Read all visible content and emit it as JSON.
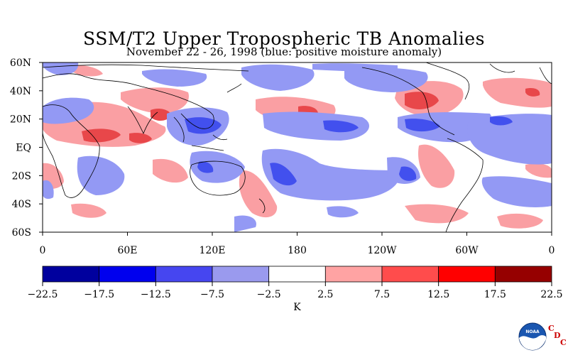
{
  "title": "SSM/T2 Upper Tropospheric TB Anomalies",
  "subtitle": "November 22 - 26, 1998 (blue: positive moisture anomaly)",
  "map": {
    "lat_labels": [
      "60N",
      "40N",
      "20N",
      "EQ",
      "20S",
      "40S",
      "60S"
    ],
    "lon_labels": [
      "0",
      "60E",
      "120E",
      "180",
      "120W",
      "60W",
      "0"
    ],
    "lat_range": [
      -60,
      60
    ],
    "lon_range": [
      0,
      360
    ],
    "colors": {
      "positive_strong": "#e8474a",
      "positive_mid": "#fa9fa3",
      "negative_mid": "#9399f4",
      "negative_strong": "#4250ee",
      "background": "#ffffff"
    }
  },
  "colorbar": {
    "ticks": [
      "-22.5",
      "-17.5",
      "-12.5",
      "-7.5",
      "-2.5",
      "2.5",
      "7.5",
      "12.5",
      "17.5",
      "22.5"
    ],
    "colors": [
      "#00009e",
      "#0000ee",
      "#4646f0",
      "#9a9aee",
      "#ffffff",
      "#ffa3a3",
      "#ff4c4c",
      "#ff0000",
      "#960000"
    ],
    "unit": "K"
  },
  "logo": {
    "text": "NOAA",
    "cdc": [
      "C",
      "D",
      "C"
    ]
  }
}
